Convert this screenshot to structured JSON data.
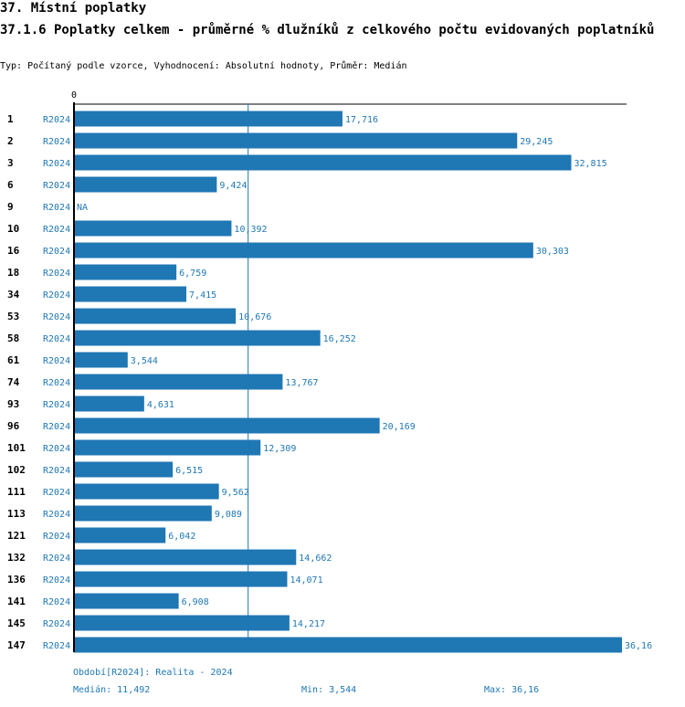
{
  "header": {
    "section_title": "37. Místní poplatky",
    "chart_title": "37.1.6 Poplatky celkem - průměrné % dlužníků z celkového počtu evidovaných poplatníků",
    "subtitle": "Typ: Počítaný podle vzorce, Vyhodnocení: Absolutní hodnoty, Průměr: Medián"
  },
  "colors": {
    "bar": "#1f77b4",
    "text_accent": "#1f77b4",
    "axis": "#000000"
  },
  "chart_data": {
    "type": "bar",
    "orientation": "horizontal",
    "axis_zero_label": "0",
    "xlim": [
      0,
      36.16
    ],
    "series_tag": "R2024",
    "categories": [
      "1",
      "2",
      "3",
      "6",
      "9",
      "10",
      "16",
      "18",
      "34",
      "53",
      "58",
      "61",
      "74",
      "93",
      "96",
      "101",
      "102",
      "111",
      "113",
      "121",
      "132",
      "136",
      "141",
      "145",
      "147"
    ],
    "values": [
      17.716,
      29.245,
      32.815,
      9.424,
      null,
      10.392,
      30.303,
      6.759,
      7.415,
      10.676,
      16.252,
      3.544,
      13.767,
      4.631,
      20.169,
      12.309,
      6.515,
      9.562,
      9.089,
      6.042,
      14.662,
      14.071,
      6.908,
      14.217,
      36.16
    ],
    "value_labels": [
      "17,716",
      "29,245",
      "32,815",
      "9,424",
      "NA",
      "10,392",
      "30,303",
      "6,759",
      "7,415",
      "10,676",
      "16,252",
      "3,544",
      "13,767",
      "4,631",
      "20,169",
      "12,309",
      "6,515",
      "9,562",
      "9,089",
      "6,042",
      "14,662",
      "14,071",
      "6,908",
      "14,217",
      "36,16"
    ],
    "median_line": 11.492
  },
  "footer": {
    "period_label": "Období[R2024]: Realita - 2024",
    "median_label": "Medián: 11,492",
    "min_label": "Min: 3,544",
    "max_label": "Max: 36,16"
  }
}
